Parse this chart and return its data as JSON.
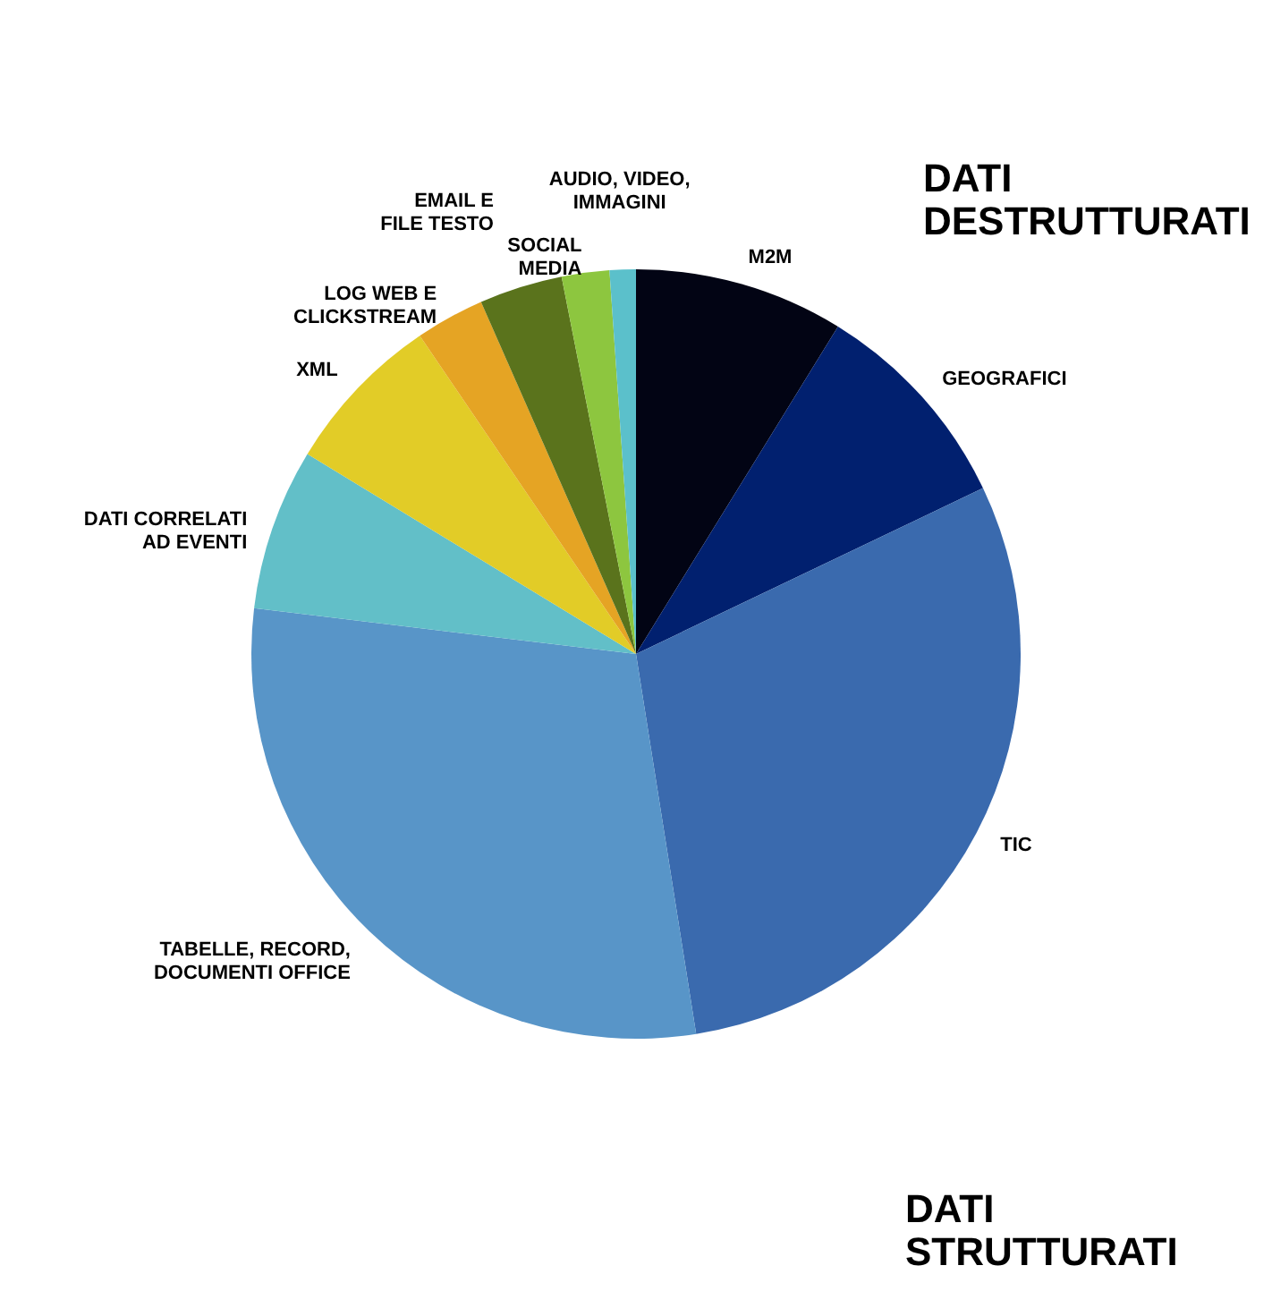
{
  "chart_data": {
    "type": "pie",
    "categories": [
      "M2M",
      "GEOGRAFICI",
      "TIC",
      "TABELLE, RECORD,\nDOCUMENTI OFFICE",
      "DATI CORRELATI\nAD EVENTI",
      "XML",
      "LOG WEB E\nCLICKSTREAM",
      "EMAIL E\nFILE TESTO",
      "SOCIAL\nMEDIA",
      "AUDIO, VIDEO,\nIMMAGINI"
    ],
    "values": [
      8.8,
      9.1,
      29.6,
      29.4,
      6.8,
      6.8,
      2.9,
      3.5,
      2.0,
      1.1
    ],
    "colors": [
      "#020414",
      "#01206f",
      "#3a6aae",
      "#5895c8",
      "#62bfc8",
      "#e2cc27",
      "#e5a424",
      "#5a731c",
      "#8dc63f",
      "#5bc0cb"
    ],
    "annotations": [
      "DATI\nDESTRUTTURATI",
      "DATI\nSTRUTTURATI"
    ],
    "legend": false
  }
}
